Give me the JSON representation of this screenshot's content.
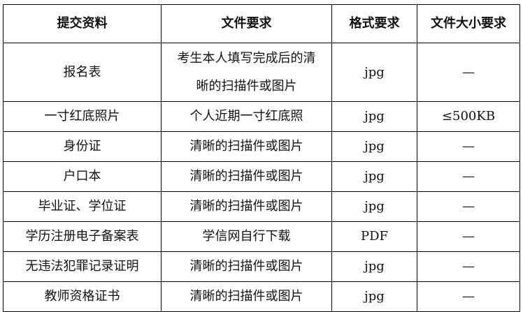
{
  "headers": [
    "提交资料",
    "文件要求",
    "格式要求",
    "文件大小要求"
  ],
  "rows": [
    {
      "material": "报名表",
      "requirement": "考生本人填写完成后的清晰的扫描件或图片",
      "format": "jpg",
      "size": "—"
    },
    {
      "material": "一寸红底照片",
      "requirement": "个人近期一寸红底照",
      "format": "jpg",
      "size": "≤500KB"
    },
    {
      "material": "身份证",
      "requirement": "清晰的扫描件或图片",
      "format": "jpg",
      "size": "—"
    },
    {
      "material": "户口本",
      "requirement": "清晰的扫描件或图片",
      "format": "jpg",
      "size": "—"
    },
    {
      "material": "毕业证、学位证",
      "requirement": "清晰的扫描件或图片",
      "format": "jpg",
      "size": "—"
    },
    {
      "material": "学历注册电子备案表",
      "requirement": "学信网自行下载",
      "format": "PDF",
      "size": "—"
    },
    {
      "material": "无违法犯罪记录证明",
      "requirement": "清晰的扫描件或图片",
      "format": "jpg",
      "size": "—"
    },
    {
      "material": "教师资格证书",
      "requirement": "清晰的扫描件或图片",
      "format": "jpg",
      "size": "—"
    }
  ]
}
